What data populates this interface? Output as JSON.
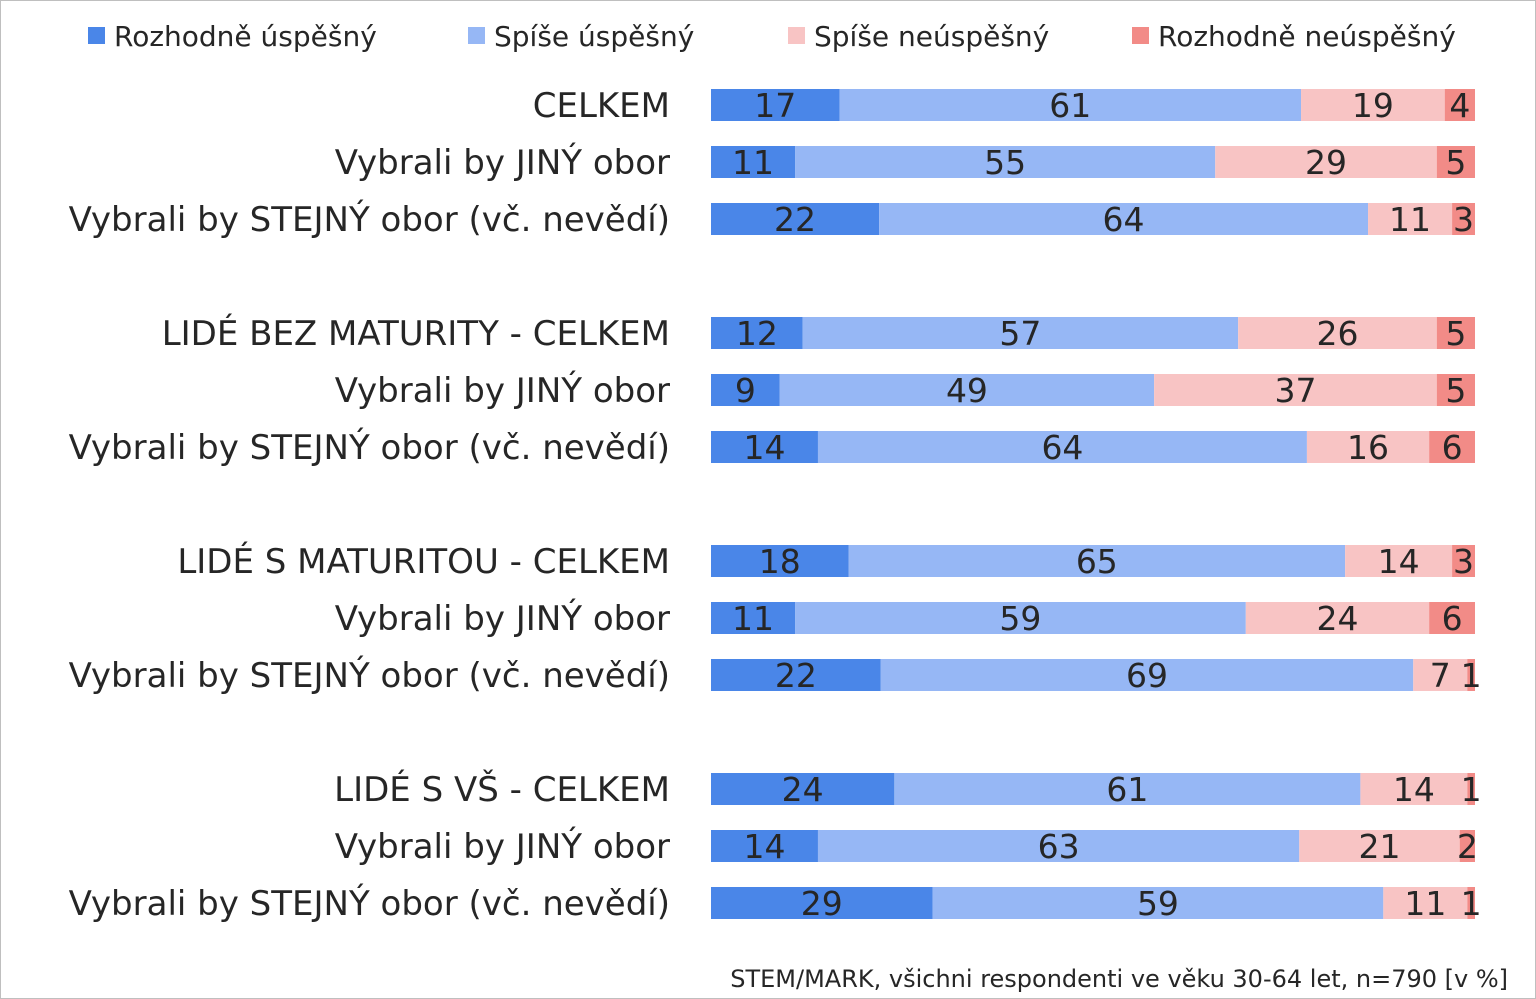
{
  "chart_data": {
    "type": "bar",
    "orientation": "horizontal",
    "stacked": "100%",
    "unit": "[v %]",
    "legend": "top",
    "grid": false,
    "categories": [
      "CELKEM",
      "Vybrali by JINÝ obor",
      "Vybrali by STEJNÝ obor (vč. nevědí)",
      "LIDÉ BEZ MATURITY - CELKEM",
      "Vybrali by JINÝ obor",
      "Vybrali by STEJNÝ obor (vč. nevědí)",
      "LIDÉ S MATURITOU - CELKEM",
      "Vybrali by JINÝ obor",
      "Vybrali by STEJNÝ obor (vč. nevědí)",
      "LIDÉ S VŠ - CELKEM",
      "Vybrali by JINÝ obor",
      "Vybrali by STEJNÝ obor (vč. nevědí)"
    ],
    "series": [
      {
        "name": "Rozhodně úspěšný",
        "color": "#4a86e8",
        "values": [
          17,
          11,
          22,
          12,
          9,
          14,
          18,
          11,
          22,
          24,
          14,
          29
        ]
      },
      {
        "name": "Spíše úspěšný",
        "color": "#96b7f5",
        "values": [
          61,
          55,
          64,
          57,
          49,
          64,
          65,
          59,
          69,
          61,
          63,
          59
        ]
      },
      {
        "name": "Spíše neúspěšný",
        "color": "#f8c4c4",
        "values": [
          19,
          29,
          11,
          26,
          37,
          16,
          14,
          24,
          7,
          14,
          21,
          11
        ]
      },
      {
        "name": "Rozhodně neúspěšný",
        "color": "#f28b87",
        "values": [
          4,
          5,
          3,
          5,
          5,
          6,
          3,
          6,
          1,
          1,
          2,
          1
        ]
      }
    ],
    "source": "STEM/MARK, všichni respondenti ve věku 30-64 let, n=790 [v %]"
  }
}
